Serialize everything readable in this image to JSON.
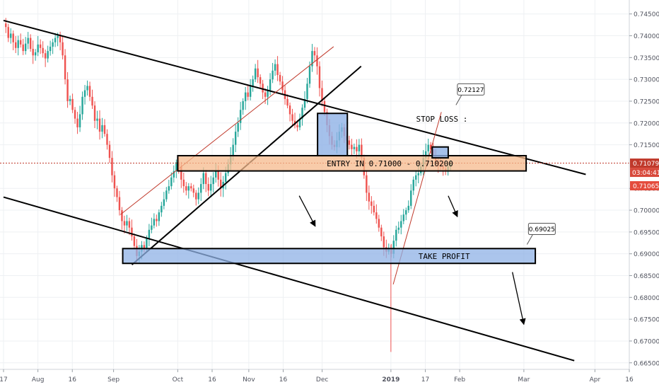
{
  "chart_data": {
    "type": "candlestick",
    "instrument_note": "",
    "x_axis": {
      "tick_labels": [
        "17",
        "Aug",
        "16",
        "Sep",
        "Oct",
        "16",
        "Nov",
        "16",
        "Dec",
        "2019",
        "17",
        "Feb",
        "Mar",
        "Apr",
        "16"
      ],
      "range": [
        "2018-07-17",
        "2019-04-16"
      ]
    },
    "y_axis": {
      "tick_labels": [
        "0.74500",
        "0.74000",
        "0.73500",
        "0.73000",
        "0.72500",
        "0.72000",
        "0.71500",
        "0.70500",
        "0.70000",
        "0.69500",
        "0.69000",
        "0.68500",
        "0.68000",
        "0.67500",
        "0.67000",
        "0.66500"
      ],
      "ylim": [
        0.6635,
        0.7482
      ]
    },
    "price_tags": {
      "last_price": "0.71079",
      "countdown": "03:04:41",
      "second_price": "0.71065"
    },
    "colors": {
      "up": "#26a69a",
      "down": "#ef5350",
      "wick_up": "#26a69a",
      "wick_down": "#ef5350",
      "zone_orange": "#f6b98c",
      "zone_blue": "#8fb2e6",
      "line": "#000000",
      "thin_line": "#c0392b",
      "last_price_line": "#c0392b"
    },
    "candles_close": [
      0.742,
      0.7395,
      0.7405,
      0.7385,
      0.7372,
      0.739,
      0.738,
      0.7365,
      0.7382,
      0.7395,
      0.737,
      0.7355,
      0.7362,
      0.738,
      0.7372,
      0.736,
      0.7348,
      0.7365,
      0.7375,
      0.7385,
      0.7395,
      0.74,
      0.7385,
      0.7355,
      0.73,
      0.725,
      0.7255,
      0.723,
      0.721,
      0.719,
      0.722,
      0.726,
      0.7275,
      0.7285,
      0.726,
      0.724,
      0.7205,
      0.721,
      0.718,
      0.7195,
      0.7175,
      0.715,
      0.712,
      0.708,
      0.705,
      0.703,
      0.7,
      0.6975,
      0.6965,
      0.6975,
      0.696,
      0.694,
      0.6918,
      0.6895,
      0.6905,
      0.692,
      0.691,
      0.6935,
      0.6955,
      0.6965,
      0.698,
      0.6975,
      0.6995,
      0.701,
      0.7025,
      0.7045,
      0.7055,
      0.7075,
      0.709,
      0.711,
      0.71,
      0.707,
      0.7055,
      0.7045,
      0.7055,
      0.705,
      0.704,
      0.7025,
      0.704,
      0.706,
      0.7085,
      0.706,
      0.7045,
      0.706,
      0.7075,
      0.709,
      0.707,
      0.705,
      0.7065,
      0.7085,
      0.7105,
      0.7125,
      0.715,
      0.718,
      0.72,
      0.723,
      0.725,
      0.727,
      0.726,
      0.7285,
      0.73,
      0.7325,
      0.7305,
      0.729,
      0.727,
      0.726,
      0.7275,
      0.73,
      0.732,
      0.7335,
      0.731,
      0.7295,
      0.7275,
      0.7255,
      0.724,
      0.722,
      0.7205,
      0.7195,
      0.719,
      0.721,
      0.7235,
      0.7255,
      0.729,
      0.733,
      0.7365,
      0.7355,
      0.733,
      0.728,
      0.725,
      0.7225,
      0.7195,
      0.717,
      0.715,
      0.7145,
      0.716,
      0.718,
      0.719,
      0.717,
      0.716,
      0.715,
      0.714,
      0.7145,
      0.7135,
      0.715,
      0.712,
      0.708,
      0.704,
      0.702,
      0.701,
      0.6995,
      0.698,
      0.696,
      0.694,
      0.6915,
      0.6905,
      0.691,
      0.69,
      0.693,
      0.6955,
      0.696,
      0.6975,
      0.699,
      0.7,
      0.701,
      0.7045,
      0.707,
      0.708,
      0.7085,
      0.71,
      0.712,
      0.7135,
      0.715,
      0.714,
      0.7125,
      0.711,
      0.7105,
      0.71,
      0.7095,
      0.709,
      0.71,
      0.7108
    ],
    "lines": [
      {
        "from": [
          "2018-07-17",
          0.7435
        ],
        "to": [
          "2019-03-28",
          0.7082
        ]
      },
      {
        "from": [
          "2018-07-17",
          0.703
        ],
        "to": [
          "2019-03-23",
          0.6655
        ]
      },
      {
        "from": [
          "2018-09-11",
          0.6875
        ],
        "to": [
          "2018-12-20",
          0.733
        ]
      },
      {
        "from": [
          "2018-09-06",
          0.699
        ],
        "to": [
          "2018-12-08",
          0.7375
        ]
      },
      {
        "from": [
          "2019-01-03",
          0.683
        ],
        "to": [
          "2019-01-24",
          0.7225
        ]
      }
    ],
    "zones": [
      {
        "label": "ENTRY IN 0.71000 - 0.710200",
        "from": "2018-10-01",
        "to": "2019-03-02",
        "y_top": 0.7125,
        "y_bottom": 0.709
      },
      {
        "label": "TAKE PROFIT",
        "from": "2018-09-07",
        "to": "2019-03-06",
        "y_top": 0.6912,
        "y_bottom": 0.6878
      },
      {
        "label": "",
        "from": "2018-12-01",
        "to": "2018-12-14",
        "y_top": 0.7222,
        "y_bottom": 0.7125
      },
      {
        "label": "",
        "from": "2019-01-20",
        "to": "2019-01-27",
        "y_top": 0.7145,
        "y_bottom": 0.712
      }
    ],
    "annotations": [
      {
        "text": "STOP LOSS :",
        "at": [
          "2019-01-13",
          0.7203
        ]
      },
      {
        "text": "0.72127",
        "at": [
          "2019-01-31",
          0.7277
        ]
      },
      {
        "text": "0.69025",
        "at": [
          "2019-03-03",
          0.6957
        ]
      }
    ],
    "arrows": [
      {
        "from": [
          "2018-11-23",
          0.7033
        ],
        "to": [
          "2018-11-30",
          0.6963
        ]
      },
      {
        "from": [
          "2019-01-27",
          0.7033
        ],
        "to": [
          "2019-01-31",
          0.6985
        ]
      },
      {
        "from": [
          "2019-02-24",
          0.6858
        ],
        "to": [
          "2019-02-29",
          0.6738
        ]
      }
    ]
  }
}
